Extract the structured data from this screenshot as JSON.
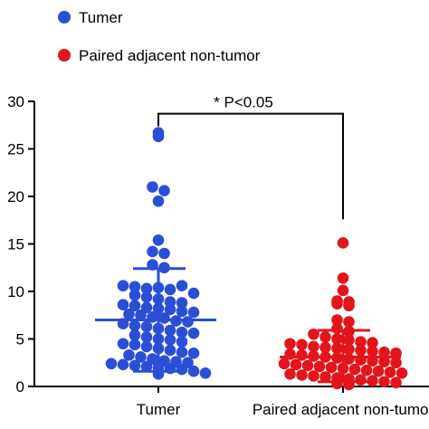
{
  "chart_data": {
    "type": "scatter",
    "categories": [
      "Tumer",
      "Paired adjacent non-tumor"
    ],
    "ylim": [
      0,
      30
    ],
    "yticks": [
      "0",
      "5",
      "10",
      "15",
      "20",
      "25",
      "30"
    ],
    "grid": false,
    "legend_position": "top-left",
    "series": [
      {
        "name": "Tumer",
        "color": "#2a4fd6",
        "category_index": 0,
        "mean": 7.0,
        "sd_upper": 12.4,
        "sd_lower": 1.6,
        "values": [
          26.7,
          26.3,
          21.0,
          20.6,
          19.5,
          15.4,
          14.2,
          14.0,
          12.8,
          12.5,
          10.6,
          10.5,
          10.3,
          10.4,
          10.2,
          10.6,
          9.8,
          9.6,
          9.4,
          9.2,
          8.9,
          8.8,
          8.6,
          8.5,
          8.3,
          8.2,
          8.1,
          7.9,
          7.8,
          7.6,
          7.5,
          7.3,
          7.2,
          6.9,
          6.8,
          6.6,
          6.4,
          6.3,
          6.1,
          5.9,
          5.7,
          5.6,
          5.4,
          5.2,
          5.0,
          4.9,
          4.7,
          4.5,
          4.4,
          4.2,
          4.0,
          3.8,
          3.6,
          3.5,
          3.3,
          3.1,
          2.9,
          2.7,
          2.6,
          2.5,
          2.4,
          2.3,
          2.2,
          2.1,
          2.0,
          1.9,
          1.8,
          1.6,
          1.4,
          1.3
        ]
      },
      {
        "name": "Paired adjacent non-tumor",
        "color": "#e3141b",
        "category_index": 1,
        "mean": 3.1,
        "sd_upper": 5.9,
        "sd_lower": 0.5,
        "values": [
          15.1,
          11.4,
          10.1,
          9.0,
          8.9,
          8.7,
          8.5,
          7.0,
          6.8,
          6.1,
          5.8,
          5.5,
          5.2,
          5.0,
          4.9,
          4.7,
          4.6,
          4.5,
          4.4,
          4.2,
          4.1,
          4.0,
          3.9,
          3.8,
          3.7,
          3.6,
          3.5,
          3.4,
          3.3,
          3.2,
          3.1,
          3.0,
          2.9,
          2.8,
          2.7,
          2.6,
          2.5,
          2.4,
          2.3,
          2.2,
          2.1,
          2.0,
          1.9,
          1.8,
          1.7,
          1.6,
          1.5,
          1.4,
          1.3,
          1.2,
          1.1,
          1.0,
          0.9,
          0.8,
          0.7,
          0.6,
          0.5,
          0.4,
          0.3,
          0.2
        ]
      }
    ],
    "annotation": {
      "text": "* P<0.05",
      "y": 28.7
    }
  }
}
